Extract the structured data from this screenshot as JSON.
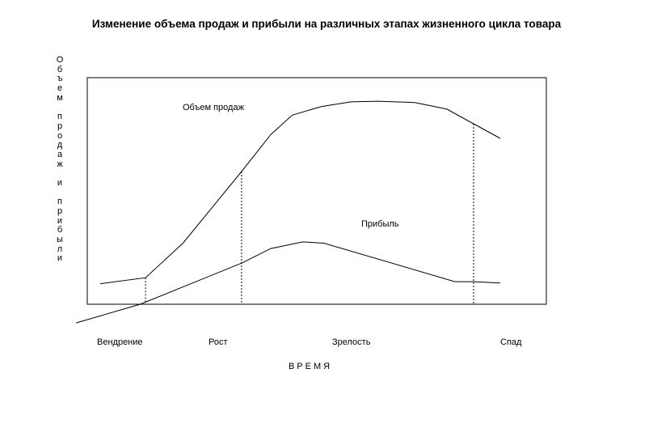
{
  "chart_data": {
    "type": "line",
    "title": "Изменение объема продаж и прибыли на различных этапах жизненного цикла товара",
    "ylabel": "Объем продаж и прибыли",
    "xlabel": "ВРЕМЯ",
    "stages": [
      "Вендрение",
      "Рост",
      "Зрелость",
      "Спад"
    ],
    "grid": false,
    "series": [
      {
        "name": "Объем продаж",
        "x": [
          0,
          17,
          31,
          53,
          64,
          72,
          83,
          94,
          104,
          118,
          130,
          140,
          150
        ],
        "y": [
          31,
          40,
          92,
          200,
          256,
          285,
          298,
          305,
          306,
          304,
          294,
          272,
          250
        ]
      },
      {
        "name": "Прибыль",
        "x": [
          -9,
          15,
          53,
          64,
          76,
          84,
          133,
          140,
          150
        ],
        "y": [
          -28,
          0,
          62,
          84,
          94,
          92,
          34,
          34,
          32
        ]
      }
    ],
    "stage_boundaries": [
      17,
      53,
      140
    ]
  }
}
